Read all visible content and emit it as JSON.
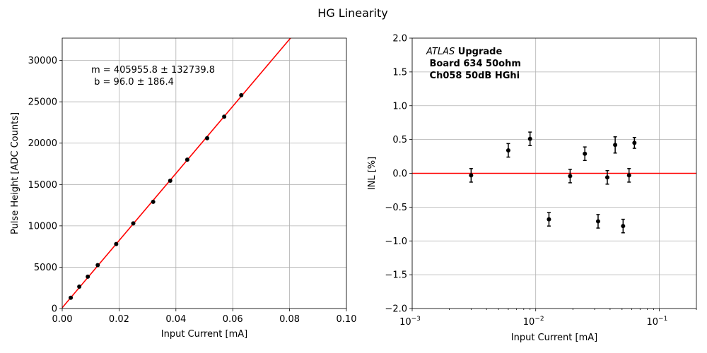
{
  "figure": {
    "title": "HG Linearity"
  },
  "chart_data": [
    {
      "type": "scatter",
      "title": "",
      "xlabel": "Input Current [mA]",
      "ylabel": "Pulse Height [ADC Counts]",
      "xlim": [
        0,
        0.1
      ],
      "ylim": [
        0,
        32700
      ],
      "xticks": [
        0.0,
        0.02,
        0.04,
        0.06,
        0.08,
        0.1
      ],
      "xtick_labels": [
        "0.00",
        "0.02",
        "0.04",
        "0.06",
        "0.08",
        "0.10"
      ],
      "yticks": [
        0,
        5000,
        10000,
        15000,
        20000,
        25000,
        30000
      ],
      "ytick_labels": [
        "0",
        "5000",
        "10000",
        "15000",
        "20000",
        "25000",
        "30000"
      ],
      "grid": true,
      "marker_color": "#000000",
      "fit_color": "#ff0000",
      "x": [
        0.003,
        0.006,
        0.009,
        0.0125,
        0.019,
        0.025,
        0.032,
        0.038,
        0.044,
        0.051,
        0.057,
        0.063
      ],
      "y": [
        1300,
        2650,
        3850,
        5250,
        7800,
        10300,
        12900,
        15450,
        18000,
        20600,
        23200,
        25800
      ],
      "fit": {
        "m": 405955.8,
        "b": 96.0
      },
      "annotation": [
        "m = 405955.8 ± 132739.8",
        " b = 96.0 ± 186.4"
      ]
    },
    {
      "type": "scatter",
      "title": "",
      "xlabel": "Input Current [mA]",
      "ylabel": "INL [%]",
      "xscale": "log",
      "xlim": [
        0.001,
        0.2
      ],
      "ylim": [
        -2.0,
        2.0
      ],
      "xticks": [
        0.001,
        0.01,
        0.1
      ],
      "xtick_base": [
        "10",
        "10",
        "10"
      ],
      "xtick_exp": [
        "−3",
        "−2",
        "−1"
      ],
      "yticks": [
        -2.0,
        -1.5,
        -1.0,
        -0.5,
        0.0,
        0.5,
        1.0,
        1.5,
        2.0
      ],
      "ytick_labels": [
        "−2.0",
        "−1.5",
        "−1.0",
        "−0.5",
        "0.0",
        "0.5",
        "1.0",
        "1.5",
        "2.0"
      ],
      "grid": true,
      "marker_color": "#000000",
      "reference_line": {
        "y": 0.0,
        "color": "#ff0000"
      },
      "x": [
        0.003,
        0.006,
        0.009,
        0.0128,
        0.019,
        0.025,
        0.032,
        0.038,
        0.044,
        0.051,
        0.057,
        0.063
      ],
      "y": [
        -0.03,
        0.34,
        0.51,
        -0.68,
        -0.04,
        0.29,
        -0.71,
        -0.06,
        0.42,
        -0.78,
        -0.03,
        0.45
      ],
      "yerr": [
        0.1,
        0.1,
        0.1,
        0.1,
        0.1,
        0.1,
        0.1,
        0.1,
        0.12,
        0.1,
        0.1,
        0.08
      ],
      "annotation": {
        "experiment": "ATLAS",
        "experiment_suffix": " Upgrade",
        "lines": [
          " Board 634 50ohm",
          " Ch058 50dB HGhi"
        ]
      }
    }
  ]
}
